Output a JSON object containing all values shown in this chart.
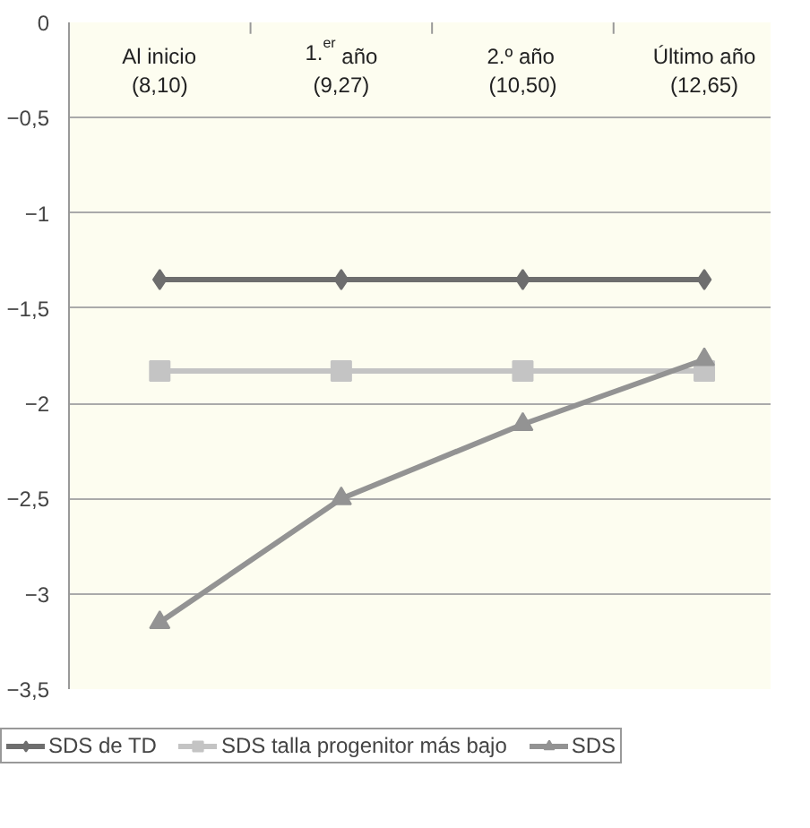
{
  "chart_data": {
    "type": "line",
    "categories": [
      "Al inicio\n(8,10)",
      "1.$^{er}$ año\n(9,27)",
      "2.º año\n(10,50)",
      "Último año\n(12,65)"
    ],
    "series": [
      {
        "name": "SDS de TD",
        "color": "#6e6e6e",
        "marker": "diamond",
        "values": [
          -1.35,
          -1.35,
          -1.35,
          -1.35
        ]
      },
      {
        "name": "SDS talla progenitor más bajo",
        "color": "#c4c4c4",
        "marker": "square",
        "values": [
          -1.83,
          -1.83,
          -1.83,
          -1.83
        ]
      },
      {
        "name": "SDS",
        "color": "#939393",
        "marker": "triangle",
        "values": [
          -3.15,
          -2.5,
          -2.11,
          -1.77
        ]
      }
    ],
    "ylim": [
      -3.5,
      0
    ],
    "yticks": [
      0,
      {
        "value": -0.5,
        "label": "−0,5"
      },
      {
        "value": -1,
        "label": "−1"
      },
      {
        "value": -1.5,
        "label": "−1,5"
      },
      {
        "value": -2,
        "label": "−2"
      },
      {
        "value": -2.5,
        "label": "−2,5"
      },
      {
        "value": -3,
        "label": "−3"
      },
      {
        "value": -3.5,
        "label": "−3,5"
      }
    ],
    "grid": "y",
    "legend": "bottom"
  }
}
